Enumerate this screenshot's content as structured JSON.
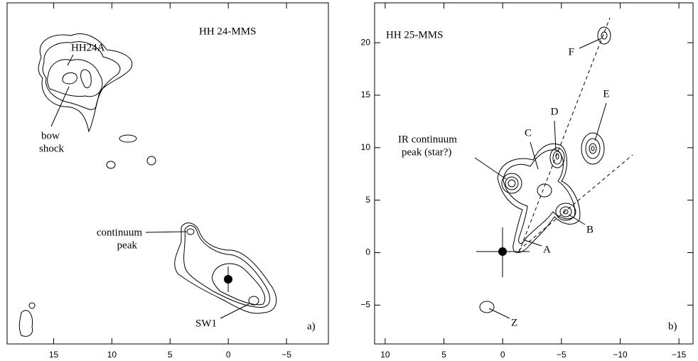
{
  "chart_data": [
    {
      "type": "contour",
      "xlim": [
        19,
        -8.6
      ],
      "ylim": [
        -5.5,
        23.7
      ],
      "xticks": [
        15,
        10,
        5,
        0,
        {
          "value": -5,
          "label": "−5"
        }
      ],
      "annotations": [
        "HH 24-MMS",
        "HH24A",
        "bow",
        "shock",
        "continuum",
        "peak",
        "SW1",
        "a)"
      ]
    },
    {
      "type": "contour",
      "xlim": [
        10.9,
        -16.2
      ],
      "ylim": [
        -8.7,
        23.8
      ],
      "xticks": [
        10,
        5,
        0,
        {
          "value": -5,
          "label": "−5"
        },
        {
          "value": -10,
          "label": "−10"
        },
        {
          "value": -15,
          "label": "−15"
        }
      ],
      "yticks": [
        {
          "value": -5,
          "label": "−5"
        },
        0,
        5,
        10,
        15,
        20
      ],
      "annotations": [
        "HH 25-MMS",
        "F",
        "E",
        "D",
        "C",
        "IR continuum",
        "peak (star?)",
        "B",
        "A",
        "Z",
        "b)"
      ]
    }
  ]
}
